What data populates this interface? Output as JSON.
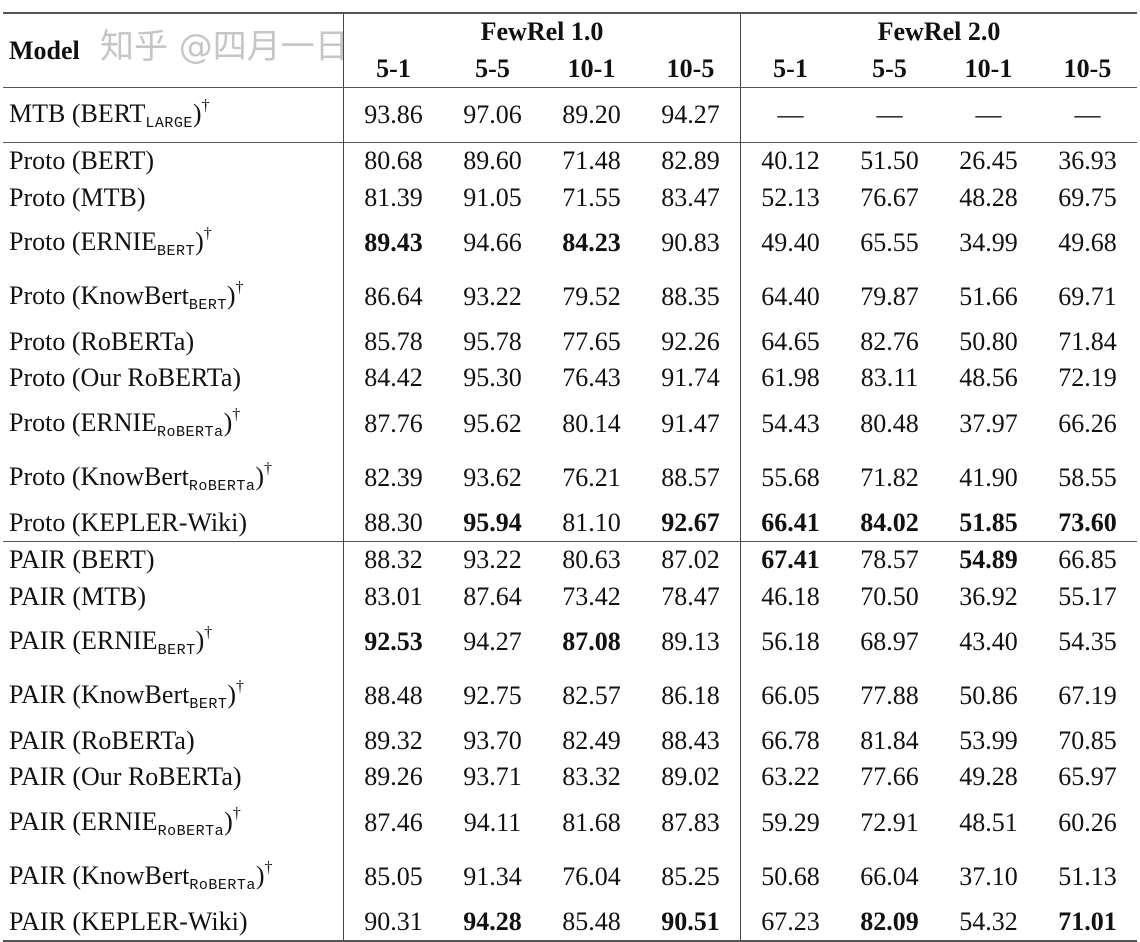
{
  "header": {
    "model_label": "Model",
    "groups": [
      "FewRel 1.0",
      "FewRel 2.0"
    ],
    "settings": [
      "5-1",
      "5-5",
      "10-1",
      "10-5",
      "5-1",
      "5-5",
      "10-1",
      "10-5"
    ]
  },
  "rows": [
    {
      "name": "MTB (BERT",
      "sub": "LARGE",
      "close": ")",
      "dagger": "†",
      "values": [
        "93.86",
        "97.06",
        "89.20",
        "94.27",
        "—",
        "—",
        "—",
        "—"
      ],
      "bold": [],
      "group_start": false
    },
    {
      "name": "Proto (BERT)",
      "sub": "",
      "close": "",
      "dagger": "",
      "values": [
        "80.68",
        "89.60",
        "71.48",
        "82.89",
        "40.12",
        "51.50",
        "26.45",
        "36.93"
      ],
      "bold": [],
      "group_start": true
    },
    {
      "name": "Proto (MTB)",
      "sub": "",
      "close": "",
      "dagger": "",
      "values": [
        "81.39",
        "91.05",
        "71.55",
        "83.47",
        "52.13",
        "76.67",
        "48.28",
        "69.75"
      ],
      "bold": [],
      "group_start": false
    },
    {
      "name": "Proto (ERNIE",
      "sub": "BERT",
      "close": ")",
      "dagger": "†",
      "values": [
        "89.43",
        "94.66",
        "84.23",
        "90.83",
        "49.40",
        "65.55",
        "34.99",
        "49.68"
      ],
      "bold": [
        0,
        2
      ],
      "group_start": false
    },
    {
      "name": "Proto (KnowBert",
      "sub": "BERT",
      "close": ")",
      "dagger": "†",
      "values": [
        "86.64",
        "93.22",
        "79.52",
        "88.35",
        "64.40",
        "79.87",
        "51.66",
        "69.71"
      ],
      "bold": [],
      "group_start": false
    },
    {
      "name": "Proto (RoBERTa)",
      "sub": "",
      "close": "",
      "dagger": "",
      "values": [
        "85.78",
        "95.78",
        "77.65",
        "92.26",
        "64.65",
        "82.76",
        "50.80",
        "71.84"
      ],
      "bold": [],
      "group_start": false
    },
    {
      "name": "Proto (Our RoBERTa)",
      "sub": "",
      "close": "",
      "dagger": "",
      "values": [
        "84.42",
        "95.30",
        "76.43",
        "91.74",
        "61.98",
        "83.11",
        "48.56",
        "72.19"
      ],
      "bold": [],
      "group_start": false
    },
    {
      "name": "Proto (ERNIE",
      "sub": "RoBERTa",
      "close": ")",
      "dagger": "†",
      "values": [
        "87.76",
        "95.62",
        "80.14",
        "91.47",
        "54.43",
        "80.48",
        "37.97",
        "66.26"
      ],
      "bold": [],
      "group_start": false
    },
    {
      "name": "Proto (KnowBert",
      "sub": "RoBERTa",
      "close": ")",
      "dagger": "†",
      "values": [
        "82.39",
        "93.62",
        "76.21",
        "88.57",
        "55.68",
        "71.82",
        "41.90",
        "58.55"
      ],
      "bold": [],
      "group_start": false
    },
    {
      "name": "Proto (KEPLER-Wiki)",
      "sub": "",
      "close": "",
      "dagger": "",
      "values": [
        "88.30",
        "95.94",
        "81.10",
        "92.67",
        "66.41",
        "84.02",
        "51.85",
        "73.60"
      ],
      "bold": [
        1,
        3,
        4,
        5,
        6,
        7
      ],
      "group_start": false
    },
    {
      "name": "PAIR (BERT)",
      "sub": "",
      "close": "",
      "dagger": "",
      "values": [
        "88.32",
        "93.22",
        "80.63",
        "87.02",
        "67.41",
        "78.57",
        "54.89",
        "66.85"
      ],
      "bold": [
        4,
        6
      ],
      "group_start": true
    },
    {
      "name": "PAIR (MTB)",
      "sub": "",
      "close": "",
      "dagger": "",
      "values": [
        "83.01",
        "87.64",
        "73.42",
        "78.47",
        "46.18",
        "70.50",
        "36.92",
        "55.17"
      ],
      "bold": [],
      "group_start": false
    },
    {
      "name": "PAIR (ERNIE",
      "sub": "BERT",
      "close": ")",
      "dagger": "†",
      "values": [
        "92.53",
        "94.27",
        "87.08",
        "89.13",
        "56.18",
        "68.97",
        "43.40",
        "54.35"
      ],
      "bold": [
        0,
        2
      ],
      "group_start": false
    },
    {
      "name": "PAIR (KnowBert",
      "sub": "BERT",
      "close": ")",
      "dagger": "†",
      "values": [
        "88.48",
        "92.75",
        "82.57",
        "86.18",
        "66.05",
        "77.88",
        "50.86",
        "67.19"
      ],
      "bold": [],
      "group_start": false
    },
    {
      "name": "PAIR (RoBERTa)",
      "sub": "",
      "close": "",
      "dagger": "",
      "values": [
        "89.32",
        "93.70",
        "82.49",
        "88.43",
        "66.78",
        "81.84",
        "53.99",
        "70.85"
      ],
      "bold": [],
      "group_start": false
    },
    {
      "name": "PAIR (Our RoBERTa)",
      "sub": "",
      "close": "",
      "dagger": "",
      "values": [
        "89.26",
        "93.71",
        "83.32",
        "89.02",
        "63.22",
        "77.66",
        "49.28",
        "65.97"
      ],
      "bold": [],
      "group_start": false
    },
    {
      "name": "PAIR (ERNIE",
      "sub": "RoBERTa",
      "close": ")",
      "dagger": "†",
      "values": [
        "87.46",
        "94.11",
        "81.68",
        "87.83",
        "59.29",
        "72.91",
        "48.51",
        "60.26"
      ],
      "bold": [],
      "group_start": false
    },
    {
      "name": "PAIR (KnowBert",
      "sub": "RoBERTa",
      "close": ")",
      "dagger": "†",
      "values": [
        "85.05",
        "91.34",
        "76.04",
        "85.25",
        "50.68",
        "66.04",
        "37.10",
        "51.13"
      ],
      "bold": [],
      "group_start": false
    },
    {
      "name": "PAIR (KEPLER-Wiki)",
      "sub": "",
      "close": "",
      "dagger": "",
      "values": [
        "90.31",
        "94.28",
        "85.48",
        "90.51",
        "67.23",
        "82.09",
        "54.32",
        "71.01"
      ],
      "bold": [
        1,
        3,
        5,
        7
      ],
      "group_start": false
    }
  ],
  "watermark": "知乎 @四月一日"
}
